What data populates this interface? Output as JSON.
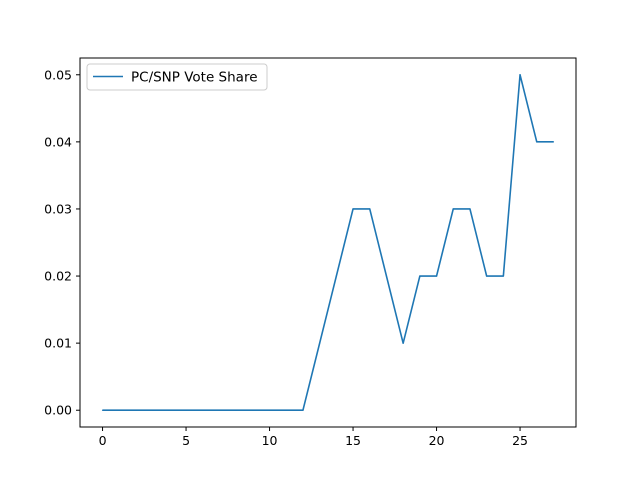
{
  "chart_data": {
    "type": "line",
    "title": "",
    "xlabel": "",
    "ylabel": "",
    "x": [
      0,
      1,
      2,
      3,
      4,
      5,
      6,
      7,
      8,
      9,
      10,
      11,
      12,
      13,
      14,
      15,
      16,
      17,
      18,
      19,
      20,
      21,
      22,
      23,
      24,
      25,
      26,
      27
    ],
    "series": [
      {
        "name": "PC/SNP Vote Share",
        "values": [
          0,
          0,
          0,
          0,
          0,
          0,
          0,
          0,
          0,
          0,
          0,
          0,
          0,
          0.01,
          0.02,
          0.03,
          0.03,
          0.02,
          0.01,
          0.02,
          0.02,
          0.03,
          0.03,
          0.02,
          0.02,
          0.05,
          0.04,
          0.04
        ],
        "color": "#1f77b4"
      }
    ],
    "xlim": [
      -1.35,
      28.35
    ],
    "ylim": [
      -0.0025,
      0.0525
    ],
    "xticks": [
      0,
      5,
      10,
      15,
      20,
      25
    ],
    "yticks": [
      0.0,
      0.01,
      0.02,
      0.03,
      0.04,
      0.05
    ],
    "ytick_labels": [
      "0.00",
      "0.01",
      "0.02",
      "0.03",
      "0.04",
      "0.05"
    ],
    "grid": false,
    "legend_position": "upper-left"
  }
}
